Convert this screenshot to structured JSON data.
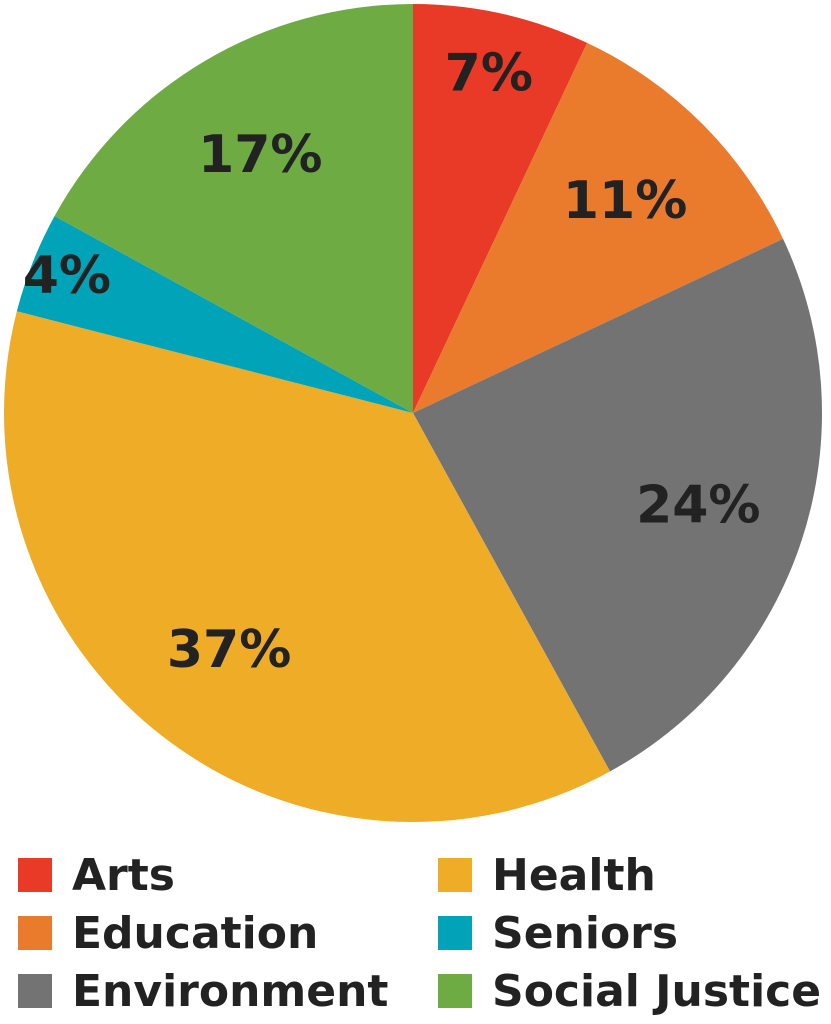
{
  "chart_data": {
    "type": "pie",
    "title": "",
    "start": "top",
    "direction": "clockwise",
    "slices": [
      {
        "label": "Arts",
        "value": 7,
        "display": "7%",
        "color": "#e83a26"
      },
      {
        "label": "Education",
        "value": 11,
        "display": "11%",
        "color": "#ea7b2d"
      },
      {
        "label": "Environment",
        "value": 24,
        "display": "24%",
        "color": "#737373"
      },
      {
        "label": "Health",
        "value": 37,
        "display": "37%",
        "color": "#eeac27"
      },
      {
        "label": "Seniors",
        "value": 4,
        "display": "4%",
        "color": "#00a3b7"
      },
      {
        "label": "Social Justice",
        "value": 17,
        "display": "17%",
        "color": "#6fab43"
      }
    ],
    "legend": {
      "placement": "bottom",
      "items": [
        {
          "label": "Arts",
          "color": "#e83a26"
        },
        {
          "label": "Health",
          "color": "#eeac27"
        },
        {
          "label": "Education",
          "color": "#ea7b2d"
        },
        {
          "label": "Seniors",
          "color": "#00a3b7"
        },
        {
          "label": "Environment",
          "color": "#737373"
        },
        {
          "label": "Social Justice",
          "color": "#6fab43"
        }
      ]
    }
  }
}
